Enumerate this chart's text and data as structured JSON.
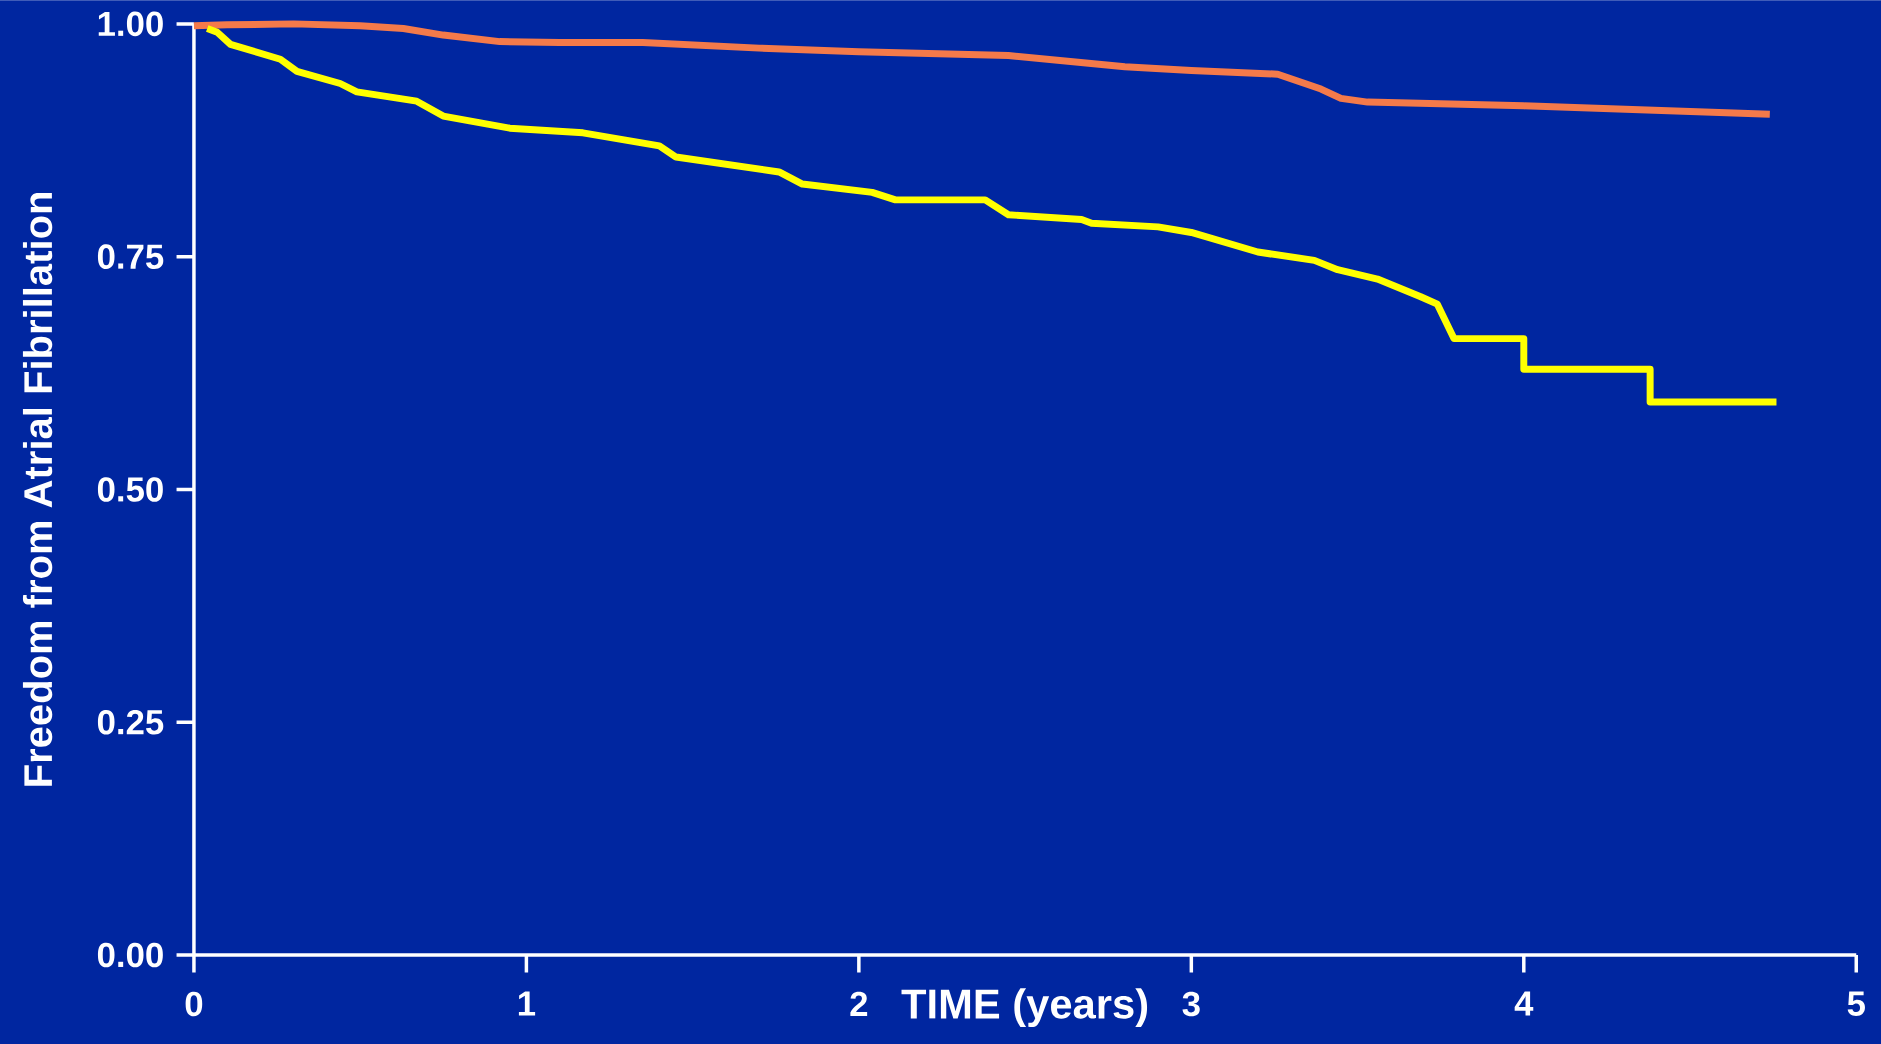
{
  "chart_data": {
    "type": "line",
    "xlabel": "TIME (years)",
    "ylabel": "Freedom from Atrial Fibrillation",
    "xlim": [
      0,
      5
    ],
    "ylim": [
      0,
      1
    ],
    "xticks": [
      0,
      1,
      2,
      3,
      4,
      5
    ],
    "yticks": [
      {
        "value": 0,
        "label": "0.00"
      },
      {
        "value": 0.25,
        "label": "0.25"
      },
      {
        "value": 0.5,
        "label": "0.50"
      },
      {
        "value": 0.75,
        "label": "0.75"
      },
      {
        "value": 1,
        "label": "1.00"
      }
    ],
    "series": [
      {
        "color": "#f47a4a",
        "x": [
          0,
          0.1,
          0.3,
          0.5,
          0.63,
          0.75,
          0.92,
          1.1,
          1.35,
          1.7,
          2.0,
          2.45,
          2.8,
          3.0,
          3.26,
          3.39,
          3.45,
          3.53,
          4.0,
          4.74
        ],
        "values": [
          0.998,
          0.999,
          1.0,
          0.998,
          0.995,
          0.988,
          0.981,
          0.98,
          0.98,
          0.974,
          0.97,
          0.966,
          0.954,
          0.95,
          0.946,
          0.93,
          0.92,
          0.916,
          0.912,
          0.903
        ]
      },
      {
        "color": "#ffff00",
        "x": [
          0.04,
          0.07,
          0.11,
          0.26,
          0.31,
          0.44,
          0.49,
          0.67,
          0.75,
          0.95,
          1.17,
          1.4,
          1.45,
          1.76,
          1.83,
          2.04,
          2.11,
          2.38,
          2.45,
          2.67,
          2.7,
          2.9,
          3.0,
          3.2,
          3.37,
          3.44,
          3.56,
          3.69,
          3.74,
          3.79,
          4.0,
          4.0,
          4.38,
          4.38,
          4.76
        ],
        "values": [
          0.995,
          0.991,
          0.978,
          0.962,
          0.949,
          0.936,
          0.927,
          0.917,
          0.901,
          0.888,
          0.883,
          0.869,
          0.857,
          0.841,
          0.828,
          0.819,
          0.811,
          0.811,
          0.795,
          0.79,
          0.786,
          0.782,
          0.776,
          0.755,
          0.746,
          0.736,
          0.726,
          0.707,
          0.699,
          0.662,
          0.662,
          0.629,
          0.629,
          0.594,
          0.594
        ]
      }
    ]
  }
}
